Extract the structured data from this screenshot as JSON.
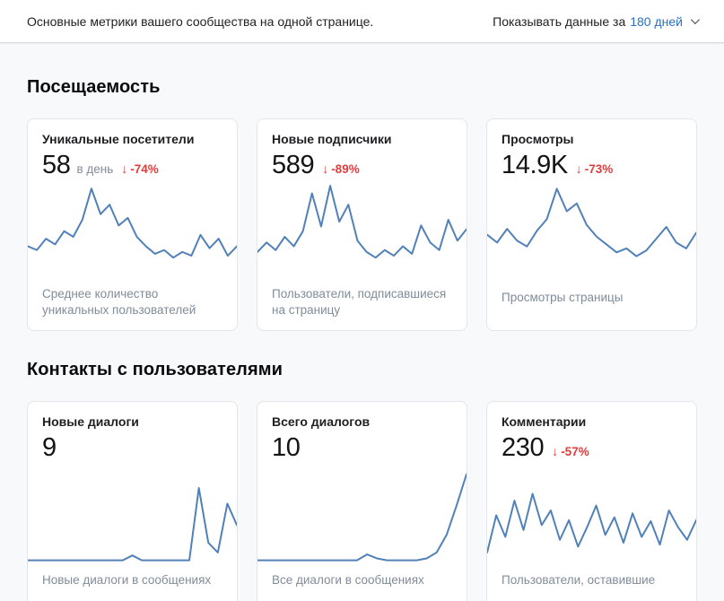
{
  "colors": {
    "link": "#2a6fc0",
    "negative": "#e03c3c",
    "chart_line": "#5181b8"
  },
  "icons": {
    "trend_down": "↓"
  },
  "topbar": {
    "subtitle": "Основные метрики вашего сообщества на одной странице.",
    "period_label": "Показывать данные за",
    "period_value": "180 дней"
  },
  "sections": [
    {
      "title": "Посещаемость",
      "cards": [
        {
          "title": "Уникальные посетители",
          "value": "58",
          "value_suffix": "в день",
          "delta": "-74%",
          "footer": "Среднее количество уникальных пользователей",
          "spark": [
            34,
            30,
            42,
            36,
            50,
            44,
            62,
            95,
            68,
            78,
            56,
            64,
            44,
            34,
            26,
            30,
            22,
            28,
            24,
            46,
            32,
            42,
            24,
            34
          ]
        },
        {
          "title": "Новые подписчики",
          "value": "589",
          "delta": "-89%",
          "footer": "Пользователи, подписавшиеся на страницу",
          "spark": [
            28,
            38,
            30,
            44,
            34,
            50,
            90,
            55,
            98,
            60,
            78,
            40,
            28,
            22,
            30,
            24,
            34,
            26,
            56,
            38,
            30,
            62,
            40,
            52
          ]
        },
        {
          "title": "Просмотры",
          "value": "14.9K",
          "delta": "-73%",
          "footer": "Просмотры страницы",
          "spark": [
            48,
            40,
            54,
            42,
            36,
            52,
            64,
            95,
            72,
            80,
            58,
            46,
            38,
            30,
            34,
            26,
            32,
            44,
            56,
            40,
            34,
            50
          ]
        }
      ]
    },
    {
      "title": "Контакты с пользователями",
      "cards": [
        {
          "title": "Новые диалоги",
          "value": "9",
          "footer": "Новые диалоги в сообщениях",
          "spark": [
            4,
            4,
            4,
            4,
            4,
            4,
            4,
            4,
            4,
            4,
            4,
            9,
            4,
            4,
            4,
            4,
            4,
            4,
            78,
            22,
            12,
            62,
            40
          ]
        },
        {
          "title": "Всего диалогов",
          "value": "10",
          "footer": "Все диалоги в сообщениях",
          "spark": [
            4,
            4,
            4,
            4,
            4,
            4,
            4,
            4,
            4,
            4,
            4,
            10,
            6,
            4,
            4,
            4,
            4,
            6,
            12,
            30,
            60,
            92
          ]
        },
        {
          "title": "Комментарии",
          "value": "230",
          "delta": "-57%",
          "footer": "Пользователи, оставившие",
          "spark": [
            12,
            50,
            28,
            65,
            35,
            72,
            40,
            55,
            25,
            45,
            18,
            38,
            60,
            30,
            48,
            22,
            52,
            28,
            44,
            20,
            55,
            38,
            25,
            45
          ]
        }
      ]
    }
  ]
}
